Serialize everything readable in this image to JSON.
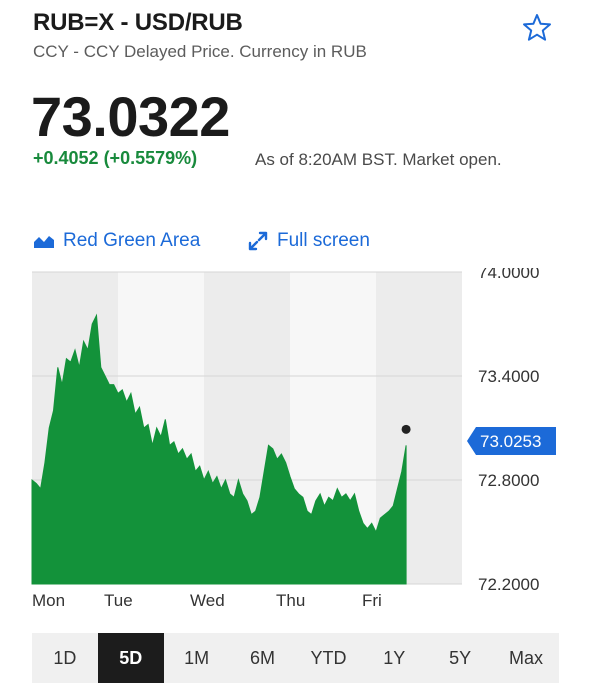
{
  "header": {
    "ticker": "RUB=X - USD/RUB",
    "subtitle": "CCY - CCY Delayed Price. Currency in RUB"
  },
  "quote": {
    "price": "73.0322",
    "change": "+0.4052 (+0.5579%)",
    "as_of": "As of 8:20AM BST. Market open."
  },
  "toolbar": {
    "chart_type_label": "Red Green Area",
    "fullscreen_label": "Full screen"
  },
  "colors": {
    "accent": "#1c6ad8",
    "positive": "#188a3c",
    "area_fill": "#13923a",
    "price_tag": "#1c6ad8"
  },
  "ranges": [
    "1D",
    "5D",
    "1M",
    "6M",
    "YTD",
    "1Y",
    "5Y",
    "Max"
  ],
  "active_range": "5D",
  "chart_data": {
    "type": "area",
    "categories": [
      "Mon",
      "Tue",
      "Wed",
      "Thu",
      "Fri"
    ],
    "y_ticks": [
      "74.0000",
      "73.4000",
      "72.8000",
      "72.2000"
    ],
    "ylim": [
      72.2,
      74.0
    ],
    "current_value_label": "73.0253",
    "current_value": 73.0253,
    "x": [
      0,
      0.05,
      0.1,
      0.15,
      0.2,
      0.25,
      0.3,
      0.35,
      0.4,
      0.45,
      0.5,
      0.55,
      0.6,
      0.65,
      0.7,
      0.75,
      0.8,
      0.85,
      0.9,
      0.95,
      1.0,
      1.05,
      1.1,
      1.15,
      1.2,
      1.25,
      1.3,
      1.35,
      1.4,
      1.45,
      1.5,
      1.55,
      1.6,
      1.65,
      1.7,
      1.75,
      1.8,
      1.85,
      1.9,
      1.95,
      2.0,
      2.05,
      2.1,
      2.15,
      2.2,
      2.25,
      2.3,
      2.35,
      2.4,
      2.45,
      2.5,
      2.55,
      2.6,
      2.65,
      2.7,
      2.75,
      2.8,
      2.85,
      2.9,
      2.95,
      3.0,
      3.05,
      3.1,
      3.15,
      3.2,
      3.25,
      3.3,
      3.35,
      3.4,
      3.45,
      3.5,
      3.55,
      3.6,
      3.65,
      3.7,
      3.75,
      3.8,
      3.85,
      3.9,
      3.95,
      4.0,
      4.05,
      4.1,
      4.15,
      4.2,
      4.25,
      4.3,
      4.35
    ],
    "values": [
      72.8,
      72.78,
      72.75,
      72.9,
      73.1,
      73.2,
      73.45,
      73.35,
      73.5,
      73.48,
      73.55,
      73.45,
      73.6,
      73.55,
      73.7,
      73.75,
      73.45,
      73.4,
      73.35,
      73.35,
      73.3,
      73.32,
      73.25,
      73.3,
      73.18,
      73.22,
      73.1,
      73.12,
      73.0,
      73.1,
      73.05,
      73.15,
      73.0,
      73.02,
      72.95,
      72.98,
      72.92,
      72.95,
      72.85,
      72.88,
      72.8,
      72.85,
      72.78,
      72.82,
      72.75,
      72.8,
      72.72,
      72.7,
      72.8,
      72.72,
      72.68,
      72.6,
      72.62,
      72.7,
      72.85,
      73.0,
      72.98,
      72.92,
      72.95,
      72.9,
      72.82,
      72.75,
      72.72,
      72.7,
      72.62,
      72.6,
      72.68,
      72.72,
      72.65,
      72.7,
      72.68,
      72.75,
      72.7,
      72.72,
      72.68,
      72.72,
      72.62,
      72.55,
      72.52,
      72.55,
      72.5,
      72.58,
      72.6,
      72.62,
      72.65,
      72.75,
      72.85,
      73.0
    ]
  }
}
